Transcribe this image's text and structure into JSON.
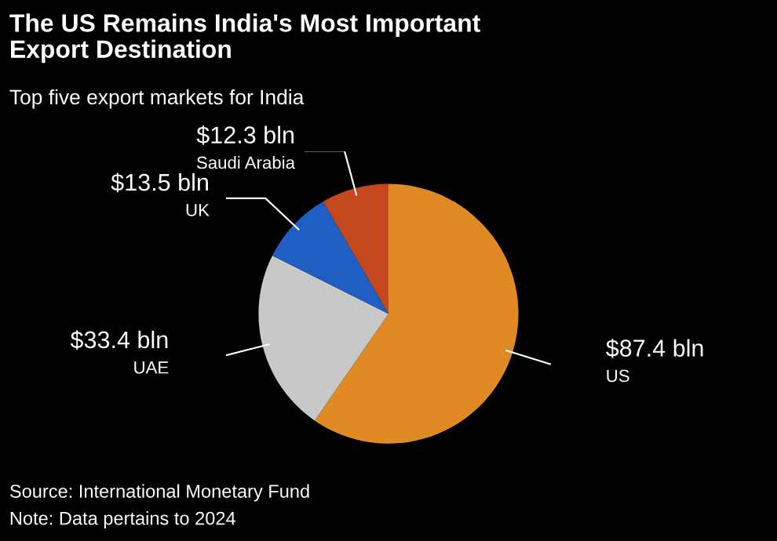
{
  "chart_data": {
    "type": "pie",
    "title": "The US Remains India's Most Important\nExport Destination",
    "subtitle": "Top five export markets for India",
    "categories": [
      "US",
      "UAE",
      "UK",
      "Saudi Arabia"
    ],
    "values": [
      87.4,
      33.4,
      13.5,
      12.3
    ],
    "value_labels": [
      "$87.4 bln",
      "$33.4 bln",
      "$13.5 bln",
      "$12.3 bln"
    ],
    "colors": [
      "#e08a25",
      "#c8c8c8",
      "#1f5fc4",
      "#c4471e"
    ],
    "annotations": [
      "Source: International Monetary Fund",
      "Note: Data pertains to 2024"
    ]
  }
}
